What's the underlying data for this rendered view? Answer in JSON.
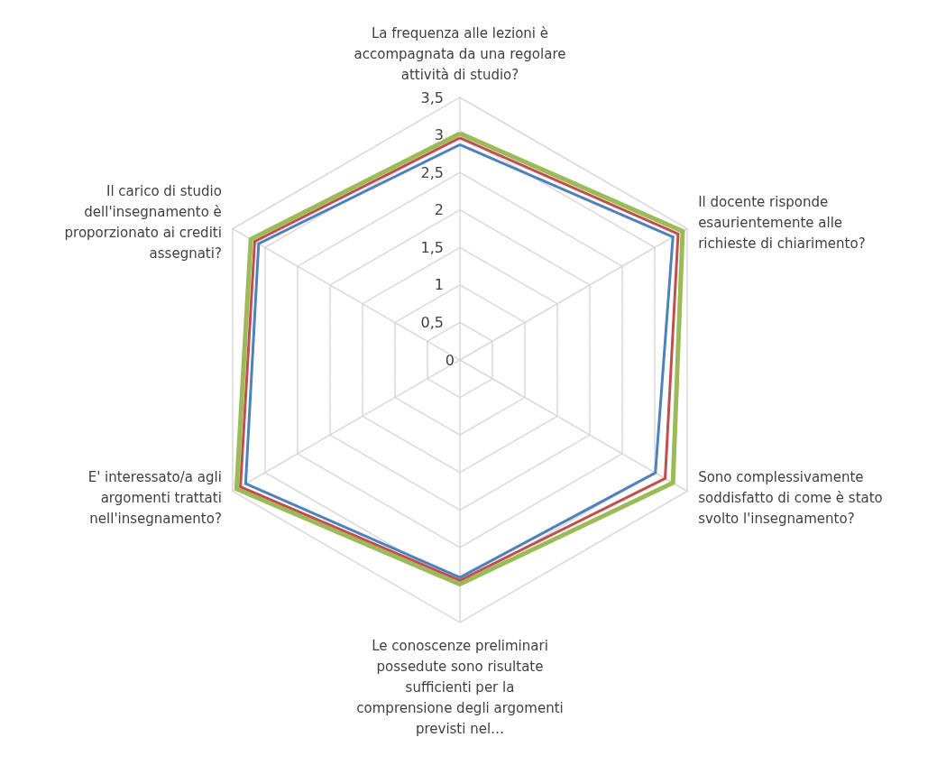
{
  "chart_data": {
    "type": "radar",
    "categories": [
      "La frequenza alle lezioni è accompagnata da una regolare attività di studio?",
      "Il docente risponde esaurientemente alle richieste di chiarimento?",
      "Sono complessivamente soddisfatto di come è stato svolto l'insegnamento?",
      "Le conoscenze preliminari possedute sono risultate sufficienti per la comprensione degli argomenti previsti nel…",
      "E' interessato/a agli argomenti trattati nell'insegnamento?",
      "Il carico di studio dell'insegnamento è proporzionato ai crediti assegnati?"
    ],
    "series": [
      {
        "color": "#9bbb59",
        "values": [
          3.02,
          3.43,
          3.28,
          2.99,
          3.44,
          3.22
        ]
      },
      {
        "color": "#c0504d",
        "values": [
          2.96,
          3.36,
          3.16,
          2.94,
          3.38,
          3.16
        ]
      },
      {
        "color": "#4f81bd",
        "values": [
          2.87,
          3.28,
          3.01,
          2.9,
          3.3,
          3.1
        ]
      }
    ],
    "ylim": [
      0,
      3.5
    ],
    "yticks": [
      {
        "value": 0,
        "label": "0"
      },
      {
        "value": 0.5,
        "label": "0,5"
      },
      {
        "value": 1,
        "label": "1"
      },
      {
        "value": 1.5,
        "label": "1,5"
      },
      {
        "value": 2,
        "label": "2"
      },
      {
        "value": 2.5,
        "label": "2,5"
      },
      {
        "value": 3,
        "label": "3"
      },
      {
        "value": 3.5,
        "label": "3,5"
      }
    ],
    "grid": true,
    "marker": "none",
    "line_style": "solid"
  }
}
